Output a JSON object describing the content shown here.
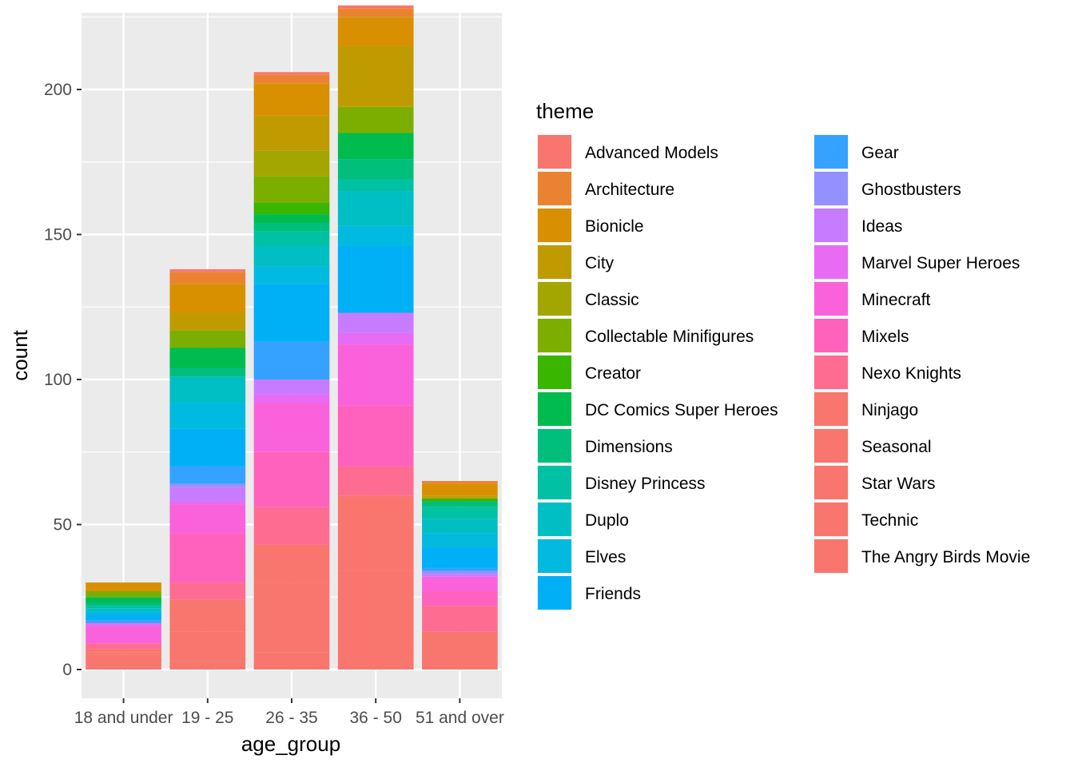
{
  "chart_data": {
    "type": "bar",
    "stacked": true,
    "title": "",
    "xlabel": "age_group",
    "ylabel": "count",
    "ylim": [
      -10,
      225
    ],
    "y_ticks": [
      0,
      50,
      100,
      150,
      200
    ],
    "grid": true,
    "legend_title": "theme",
    "legend_position": "right",
    "categories": [
      "18 and under",
      "19 - 25",
      "26 - 35",
      "36 - 50",
      "51 and over"
    ],
    "series": [
      {
        "name": "Advanced Models",
        "color": "#F8766D",
        "values": [
          0,
          1,
          1,
          1,
          0
        ]
      },
      {
        "name": "Architecture",
        "color": "#EA8331",
        "values": [
          0,
          4,
          3,
          3,
          1
        ]
      },
      {
        "name": "Bionicle",
        "color": "#D89000",
        "values": [
          3,
          10,
          11,
          10,
          4
        ]
      },
      {
        "name": "City",
        "color": "#C09B00",
        "values": [
          0,
          6,
          12,
          21,
          1
        ]
      },
      {
        "name": "Classic",
        "color": "#A3A500",
        "values": [
          0,
          0,
          9,
          0,
          0
        ]
      },
      {
        "name": "Collectable Minifigures",
        "color": "#7CAE00",
        "values": [
          2,
          6,
          9,
          9,
          0
        ]
      },
      {
        "name": "Creator",
        "color": "#39B600",
        "values": [
          0,
          0,
          4,
          0,
          1
        ]
      },
      {
        "name": "DC Comics Super Heroes",
        "color": "#00BB4E",
        "values": [
          2,
          7,
          3,
          9,
          0
        ]
      },
      {
        "name": "Dimensions",
        "color": "#00BF7D",
        "values": [
          1,
          3,
          3,
          7,
          2
        ]
      },
      {
        "name": "Disney Princess",
        "color": "#00C1A3",
        "values": [
          1,
          0,
          5,
          4,
          4
        ]
      },
      {
        "name": "Duplo",
        "color": "#00BFC4",
        "values": [
          1,
          9,
          7,
          12,
          5
        ]
      },
      {
        "name": "Elves",
        "color": "#00BAE0",
        "values": [
          1,
          9,
          6,
          7,
          5
        ]
      },
      {
        "name": "Friends",
        "color": "#00B0F6",
        "values": [
          2,
          13,
          20,
          23,
          7
        ]
      },
      {
        "name": "Gear",
        "color": "#35A2FF",
        "values": [
          1,
          6,
          13,
          0,
          1
        ]
      },
      {
        "name": "Ghostbusters",
        "color": "#9590FF",
        "values": [
          0,
          1,
          0,
          0,
          1
        ]
      },
      {
        "name": "Ideas",
        "color": "#C77CFF",
        "values": [
          0,
          5,
          5,
          7,
          1
        ]
      },
      {
        "name": "Marvel Super Heroes",
        "color": "#E76BF3",
        "values": [
          1,
          1,
          3,
          4,
          0
        ]
      },
      {
        "name": "Minecraft",
        "color": "#FA62DB",
        "values": [
          6,
          10,
          17,
          21,
          5
        ]
      },
      {
        "name": "Mixels",
        "color": "#FF62BC",
        "values": [
          0,
          17,
          19,
          21,
          5
        ]
      },
      {
        "name": "Nexo Knights",
        "color": "#FF6C91",
        "values": [
          2,
          6,
          13,
          10,
          9
        ]
      },
      {
        "name": "Ninjago",
        "color": "#F8766D",
        "values": [
          1,
          11,
          13,
          26,
          0
        ]
      },
      {
        "name": "Seasonal",
        "color": "#F8766D",
        "values": [
          1,
          0,
          0,
          0,
          0
        ]
      },
      {
        "name": "Star Wars",
        "color": "#F8766D",
        "values": [
          4,
          10,
          24,
          26,
          13
        ]
      },
      {
        "name": "Technic",
        "color": "#F8766D",
        "values": [
          1,
          0,
          2,
          4,
          0
        ]
      },
      {
        "name": "The Angry Birds Movie",
        "color": "#F8766D",
        "values": [
          0,
          3,
          4,
          4,
          0
        ]
      }
    ],
    "legend": [
      {
        "label": "Advanced Models",
        "color": "#F8766D"
      },
      {
        "label": "Architecture",
        "color": "#EA8331"
      },
      {
        "label": "Bionicle",
        "color": "#D89000"
      },
      {
        "label": "City",
        "color": "#C09B00"
      },
      {
        "label": "Classic",
        "color": "#A3A500"
      },
      {
        "label": "Collectable Minifigures",
        "color": "#7CAE00"
      },
      {
        "label": "Creator",
        "color": "#39B600"
      },
      {
        "label": "DC Comics Super Heroes",
        "color": "#00BB4E"
      },
      {
        "label": "Dimensions",
        "color": "#00BF7D"
      },
      {
        "label": "Disney Princess",
        "color": "#00C1A3"
      },
      {
        "label": "Duplo",
        "color": "#00BFC4"
      },
      {
        "label": "Elves",
        "color": "#00BAE0"
      },
      {
        "label": "Friends",
        "color": "#00B0F6"
      },
      {
        "label": "Gear",
        "color": "#35A2FF"
      },
      {
        "label": "Ghostbusters",
        "color": "#9590FF"
      },
      {
        "label": "Ideas",
        "color": "#C77CFF"
      },
      {
        "label": "Marvel Super Heroes",
        "color": "#E76BF3"
      },
      {
        "label": "Minecraft",
        "color": "#FA62DB"
      },
      {
        "label": "Mixels",
        "color": "#FF62BC"
      },
      {
        "label": "Nexo Knights",
        "color": "#FF6C91"
      },
      {
        "label": "Ninjago",
        "color": "#F8766D"
      },
      {
        "label": "Seasonal",
        "color": "#F8766D"
      },
      {
        "label": "Star Wars",
        "color": "#F8766D"
      },
      {
        "label": "Technic",
        "color": "#F8766D"
      },
      {
        "label": "The Angry Birds Movie",
        "color": "#F8766D"
      }
    ]
  }
}
